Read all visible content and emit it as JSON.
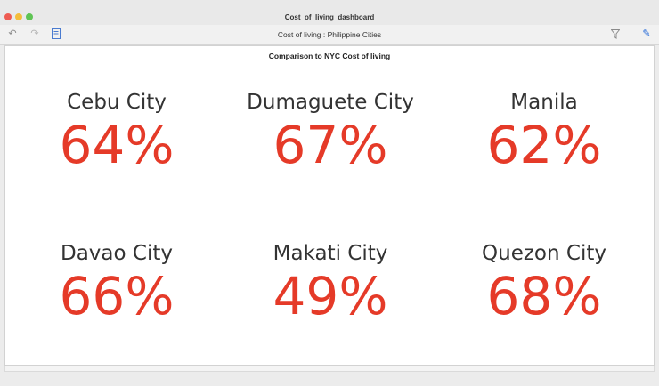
{
  "window": {
    "title": "Cost_of_living_dashboard"
  },
  "toolbar": {
    "view_title": "Cost of living : Philippine Cities",
    "icons": {
      "undo": "undo-icon",
      "redo": "redo-icon",
      "doc": "document-icon",
      "filter": "filter-icon",
      "edit": "pencil-icon"
    }
  },
  "dashboard": {
    "subtitle": "Comparison to NYC Cost of living",
    "accent_color": "#e53a28",
    "tiles": [
      {
        "city": "Cebu City",
        "value": "64%"
      },
      {
        "city": "Dumaguete City",
        "value": "67%"
      },
      {
        "city": "Manila",
        "value": "62%"
      },
      {
        "city": "Davao City",
        "value": "66%"
      },
      {
        "city": "Makati City",
        "value": "49%"
      },
      {
        "city": "Quezon City",
        "value": "68%"
      }
    ]
  }
}
